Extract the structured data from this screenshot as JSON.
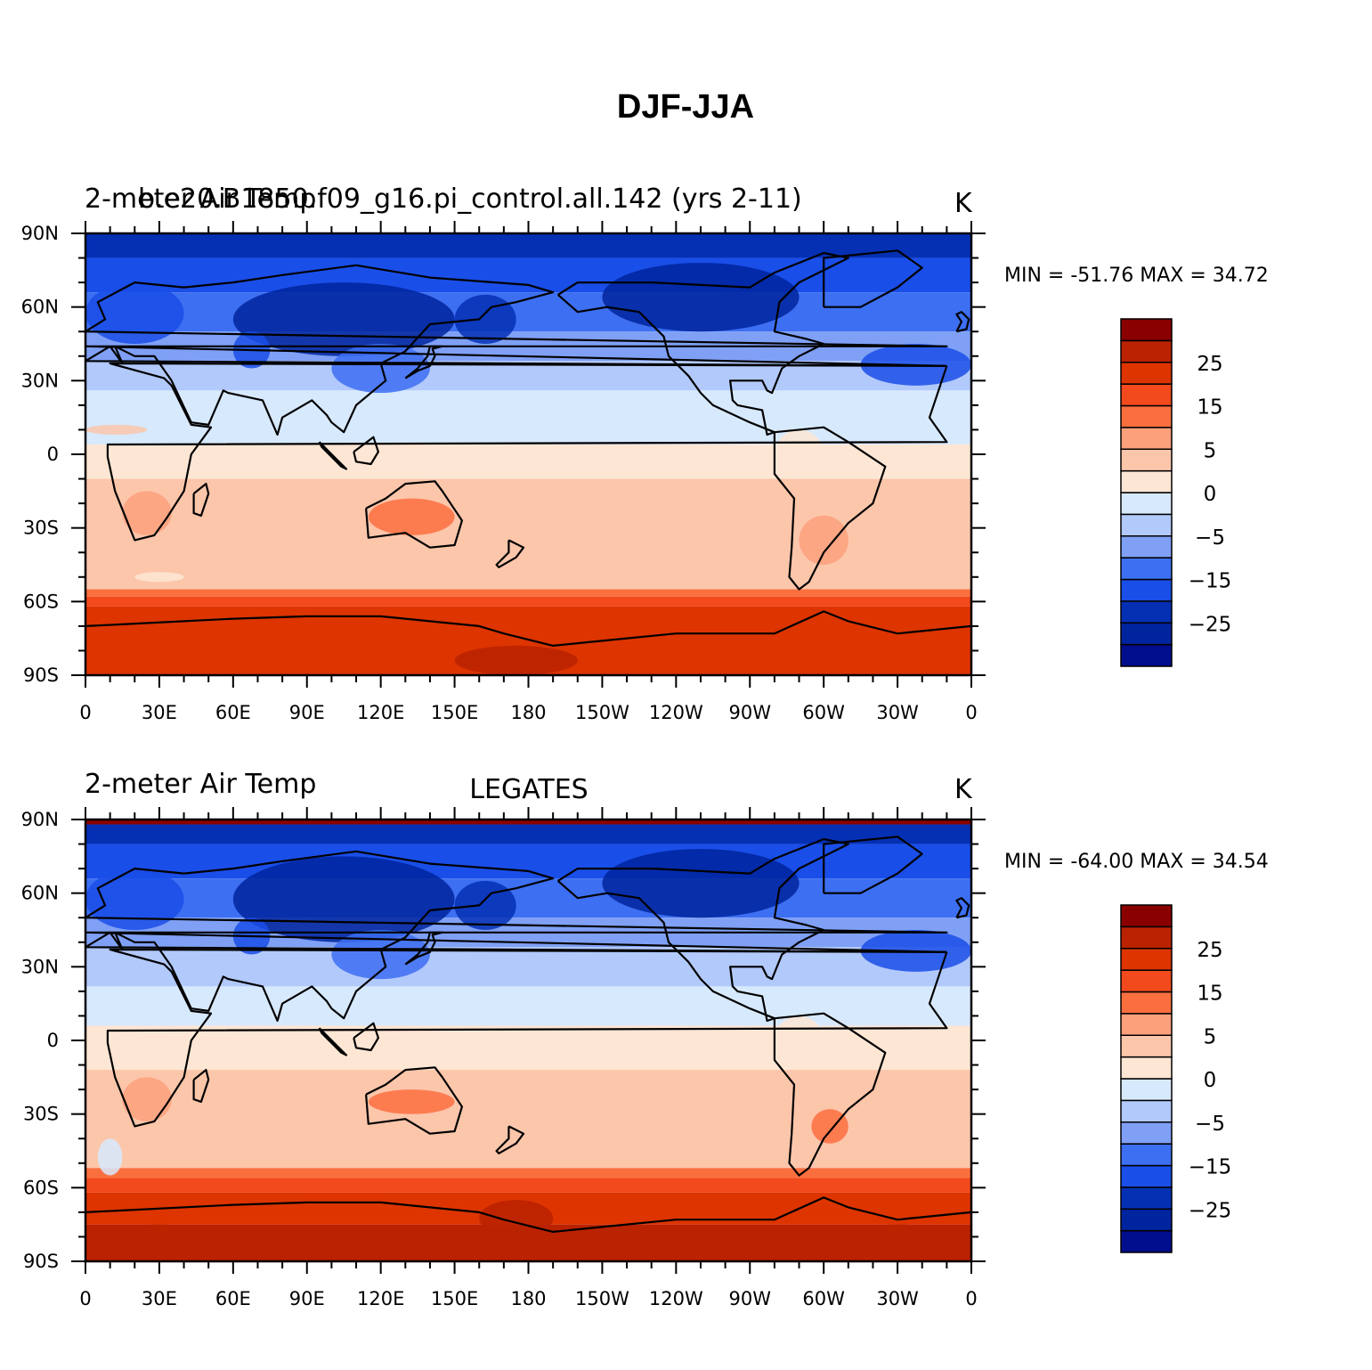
{
  "title": "DJF-JJA",
  "tick_labels": {
    "y": [
      "90N",
      "60N",
      "30N",
      "0",
      "30S",
      "60S",
      "90S"
    ],
    "x": [
      "0",
      "30E",
      "60E",
      "90E",
      "120E",
      "150E",
      "180",
      "150W",
      "120W",
      "90W",
      "60W",
      "30W",
      "0"
    ]
  },
  "colorbar": {
    "colors": [
      "#000d8c",
      "#00249e",
      "#0530b4",
      "#1a4ee8",
      "#3d6ff2",
      "#7fa0f5",
      "#b2c9fb",
      "#d7e9fd",
      "#fde6d4",
      "#fcc6ab",
      "#fca07c",
      "#fb6f3f",
      "#f24a1d",
      "#dd3400",
      "#ba2200",
      "#8a0000"
    ],
    "labels": [
      "25",
      "15",
      "5",
      "0",
      "-5",
      "-15",
      "-25"
    ]
  },
  "panels": [
    {
      "left_label": "2-meter Air Temp",
      "center_label": "b.e20.B1850.f09_g16.pi_control.all.142 (yrs 2-11)",
      "right_label": "K",
      "min_max": "MIN = -51.76  MAX =   34.72"
    },
    {
      "left_label": "2-meter Air Temp",
      "center_label": "LEGATES",
      "right_label": "K",
      "min_max": "MIN = -64.00  MAX =   34.54"
    }
  ]
}
